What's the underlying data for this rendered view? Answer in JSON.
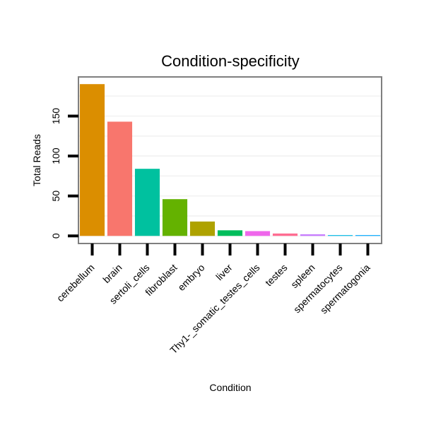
{
  "chart_data": {
    "type": "bar",
    "title": "Condition-specificity",
    "xlabel": "Condition",
    "ylabel": "Total Reads",
    "categories": [
      "cerebellum",
      "brain",
      "sertoli_cells",
      "fibroblast",
      "embryo",
      "liver",
      "Thy1-_somatic_testes_cells",
      "testes",
      "spleen",
      "spermatocytes",
      "spermatogonia"
    ],
    "values": [
      190,
      143,
      84,
      46,
      18,
      7,
      6,
      3,
      2,
      1,
      1
    ],
    "colors": [
      "#DB8E00",
      "#F8766D",
      "#00C19F",
      "#64B200",
      "#AEA200",
      "#00BD5C",
      "#EF67EB",
      "#FF6C91",
      "#C77CFF",
      "#00B8E7",
      "#00A9FF"
    ],
    "yticks": [
      0,
      50,
      100,
      150
    ],
    "ylim": [
      -9.5,
      199
    ],
    "grid": true,
    "grid_color": "#F4F4F4",
    "panel_border_color": "#7F7F7F"
  }
}
